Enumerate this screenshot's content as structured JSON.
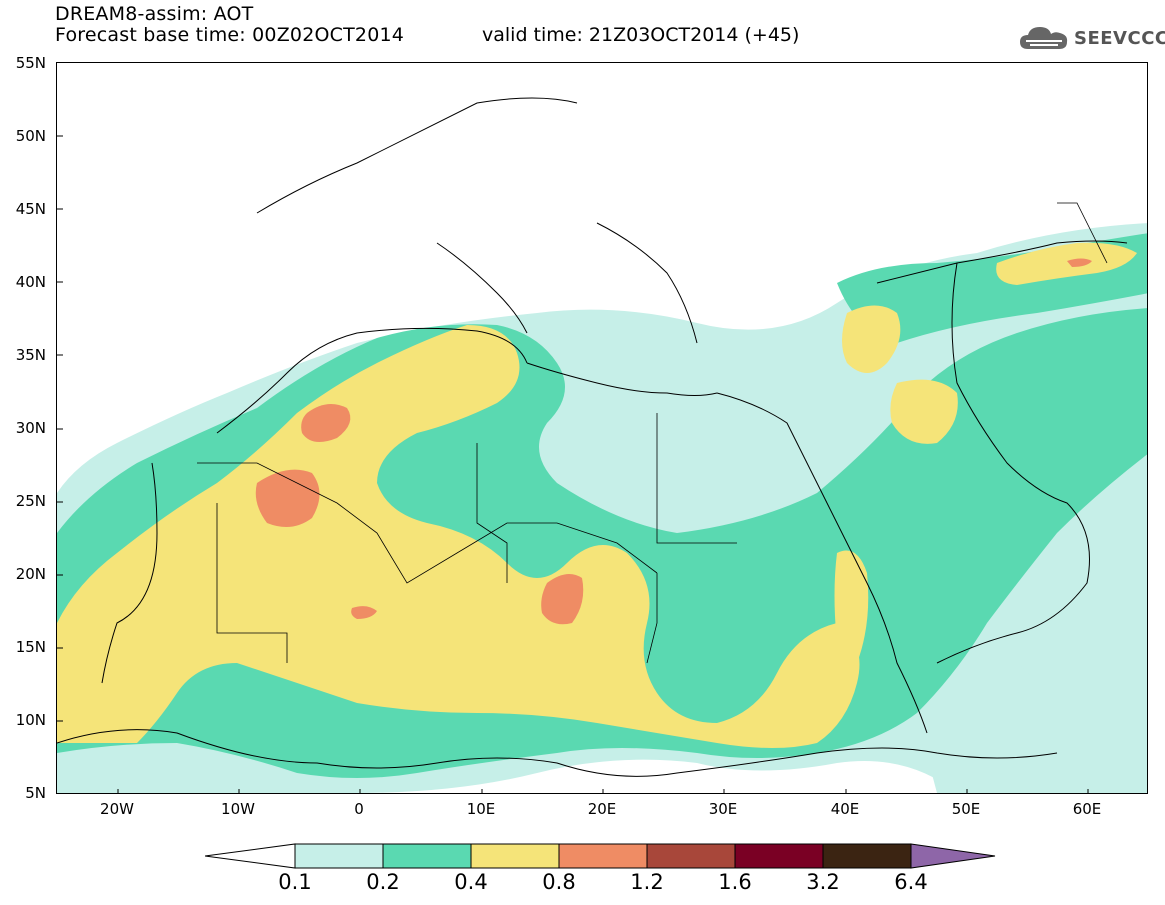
{
  "header": {
    "line1": "DREAM8-assim: AOT",
    "line2": "Forecast base time: 00Z02OCT2014",
    "valid": "valid time: 21Z03OCT2014 (+45)"
  },
  "logo": {
    "text": "SEEVCCC",
    "icon": "cloud-icon"
  },
  "axes": {
    "lat_labels": [
      "55N",
      "50N",
      "45N",
      "40N",
      "35N",
      "30N",
      "25N",
      "20N",
      "15N",
      "10N",
      "5N"
    ],
    "lon_labels": [
      "20W",
      "10W",
      "0",
      "10E",
      "20E",
      "30E",
      "40E",
      "50E",
      "60E"
    ],
    "lon_range": [
      -25,
      65
    ],
    "lat_range": [
      5,
      55
    ]
  },
  "colorbar": {
    "ticks": [
      "0.1",
      "0.2",
      "0.4",
      "0.8",
      "1.2",
      "1.6",
      "3.2",
      "6.4"
    ],
    "colors": [
      "#ffffff",
      "#c6efe8",
      "#5ad9b1",
      "#f5e479",
      "#ef8c64",
      "#a8473a",
      "#7a0024",
      "#3b2412",
      "#8e66a8"
    ]
  }
}
